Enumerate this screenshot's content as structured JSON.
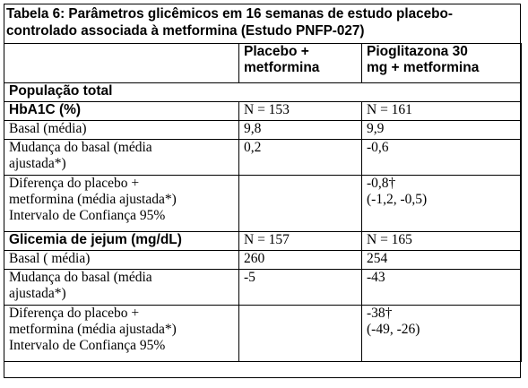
{
  "title": {
    "line1": "Tabela 6: Parâmetros glicêmicos em 16 semanas de estudo placebo-",
    "line2": "controlado associada à metformina (Estudo PNFP-027)"
  },
  "header": {
    "col2": [
      "Placebo +",
      "metformina"
    ],
    "col3": [
      "Pioglitazona 30",
      "mg + metformina"
    ]
  },
  "section": "População total",
  "hba1c": {
    "label": "HbA1C (%)",
    "n_placebo": "N = 153",
    "n_pio": "N = 161",
    "basal_label": "Basal  (média)",
    "basal_placebo": "9,8",
    "basal_pio": "9,9",
    "change_label": [
      "Mudança do basal (média",
      "ajustada*)"
    ],
    "change_placebo": "0,2",
    "change_pio": "-0,6",
    "diff_label": [
      "Diferença do placebo +",
      "metformina (média ajustada*)",
      "Intervalo de Confiança 95%"
    ],
    "diff_pio": [
      "-0,8†",
      "(-1,2, -0,5)"
    ]
  },
  "glicemia": {
    "label": "Glicemia de jejum (mg/dL)",
    "n_placebo": "N = 157",
    "n_pio": "N = 165",
    "basal_label": "Basal ( média)",
    "basal_placebo": "260",
    "basal_pio": "254",
    "change_label": [
      "Mudança do basal (média",
      "ajustada*)"
    ],
    "change_placebo": "-5",
    "change_pio": "-43",
    "diff_label": [
      "Diferença do placebo +",
      "metformina (média ajustada*)",
      "Intervalo de Confiança 95%"
    ],
    "diff_pio": [
      "-38†",
      "(-49, -26)"
    ]
  }
}
